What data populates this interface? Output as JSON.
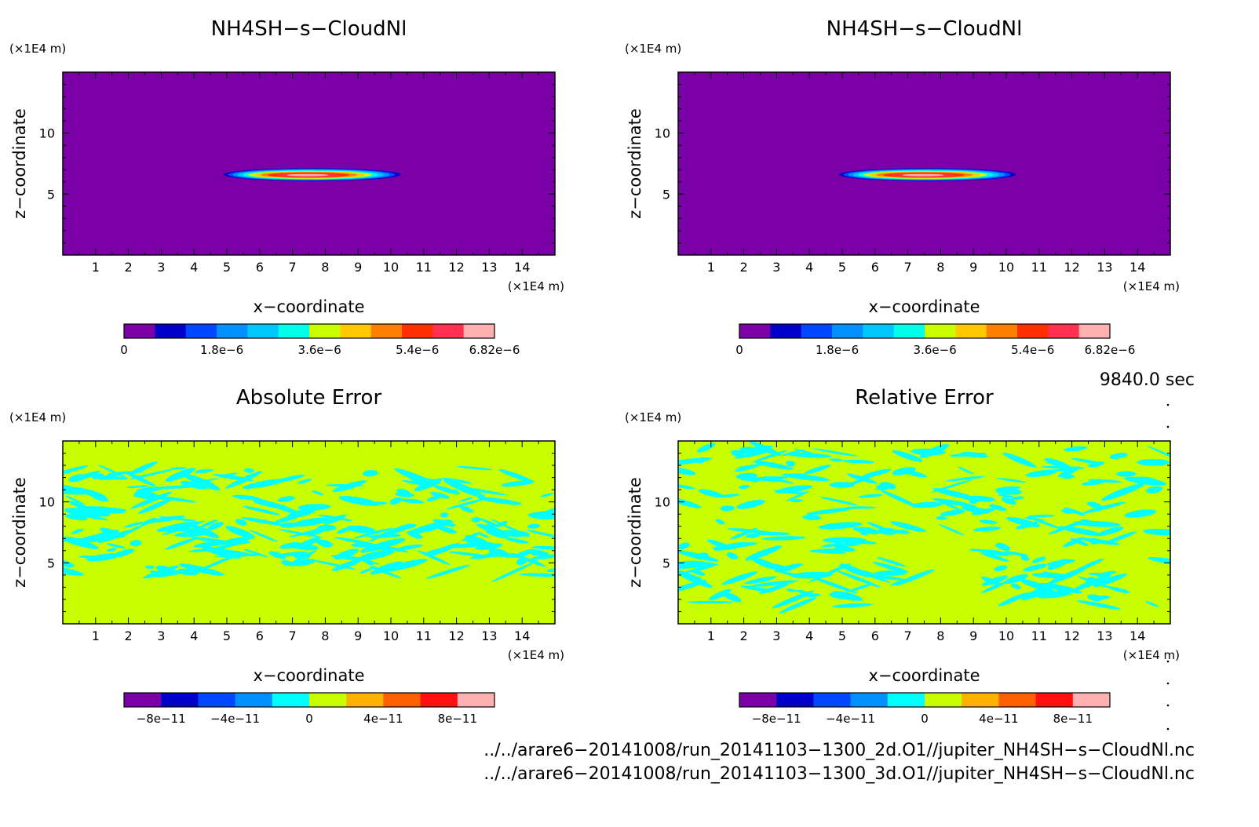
{
  "chart_data": [
    {
      "type": "heatmap",
      "title": "NH4SH−s−CloudNl",
      "xlabel": "x−coordinate",
      "ylabel": "z−coordinate",
      "xunit": "(×1E4 m)",
      "yunit": "(×1E4 m)",
      "xlim": [
        0,
        15
      ],
      "ylim": [
        0,
        15
      ],
      "x_ticks": [
        1,
        2,
        3,
        4,
        5,
        6,
        7,
        8,
        9,
        10,
        11,
        12,
        13,
        14
      ],
      "y_ticks": [
        5,
        10
      ],
      "field": "cloud",
      "field_range": [
        0,
        6.82e-06
      ],
      "cloud_center": [
        7.6,
        6.6
      ],
      "cloud_extent": [
        2.7,
        0.5
      ],
      "colorbar": {
        "tick_labels": [
          "0",
          "1.8e−6",
          "3.6e−6",
          "5.4e−6",
          "6.82e−6"
        ],
        "tick_values": [
          0,
          1.8e-06,
          3.6e-06,
          5.4e-06,
          6.82e-06
        ],
        "colors": [
          "#7b00a8",
          "#0000c8",
          "#0048ff",
          "#0090ff",
          "#00c8ff",
          "#00ffe8",
          "#c8ff00",
          "#ffc800",
          "#ff8000",
          "#ff3000",
          "#ff3050",
          "#ffb0b0"
        ]
      }
    },
    {
      "type": "heatmap",
      "title": "NH4SH−s−CloudNl",
      "xlabel": "x−coordinate",
      "ylabel": "z−coordinate",
      "xunit": "(×1E4 m)",
      "yunit": "(×1E4 m)",
      "xlim": [
        0,
        15
      ],
      "ylim": [
        0,
        15
      ],
      "x_ticks": [
        1,
        2,
        3,
        4,
        5,
        6,
        7,
        8,
        9,
        10,
        11,
        12,
        13,
        14
      ],
      "y_ticks": [
        5,
        10
      ],
      "field": "cloud",
      "field_range": [
        0,
        6.82e-06
      ],
      "cloud_center": [
        7.6,
        6.6
      ],
      "cloud_extent": [
        2.7,
        0.5
      ],
      "colorbar": {
        "tick_labels": [
          "0",
          "1.8e−6",
          "3.6e−6",
          "5.4e−6",
          "6.82e−6"
        ],
        "tick_values": [
          0,
          1.8e-06,
          3.6e-06,
          5.4e-06,
          6.82e-06
        ],
        "colors": [
          "#7b00a8",
          "#0000c8",
          "#0048ff",
          "#0090ff",
          "#00c8ff",
          "#00ffe8",
          "#c8ff00",
          "#ffc800",
          "#ff8000",
          "#ff3000",
          "#ff3050",
          "#ffb0b0"
        ]
      }
    },
    {
      "type": "heatmap",
      "title": "Absolute Error",
      "xlabel": "x−coordinate",
      "ylabel": "z−coordinate",
      "xunit": "(×1E4 m)",
      "yunit": "(×1E4 m)",
      "xlim": [
        0,
        15
      ],
      "ylim": [
        0,
        15
      ],
      "x_ticks": [
        1,
        2,
        3,
        4,
        5,
        6,
        7,
        8,
        9,
        10,
        11,
        12,
        13,
        14
      ],
      "y_ticks": [
        5,
        10
      ],
      "field": "noise",
      "field_range": [
        -1e-10,
        1e-10
      ],
      "background_color": "#c8ff00",
      "pattern_color": "#00ffff",
      "noise_band_z": [
        4.0,
        13.0
      ],
      "noise_seed": 7,
      "colorbar": {
        "tick_labels": [
          "−8e−11",
          "−4e−11",
          "0",
          "4e−11",
          "8e−11"
        ],
        "tick_values": [
          -8e-11,
          -4e-11,
          0,
          4e-11,
          8e-11
        ],
        "colors": [
          "#7b00a8",
          "#0000c8",
          "#0048ff",
          "#0090ff",
          "#00ffff",
          "#c8ff00",
          "#ffb000",
          "#ff6000",
          "#ff1010",
          "#ffb0b0"
        ]
      }
    },
    {
      "type": "heatmap",
      "title": "Relative Error",
      "xlabel": "x−coordinate",
      "ylabel": "z−coordinate",
      "xunit": "(×1E4 m)",
      "yunit": "(×1E4 m)",
      "xlim": [
        0,
        15
      ],
      "ylim": [
        0,
        15
      ],
      "x_ticks": [
        1,
        2,
        3,
        4,
        5,
        6,
        7,
        8,
        9,
        10,
        11,
        12,
        13,
        14
      ],
      "y_ticks": [
        5,
        10
      ],
      "field": "noise",
      "field_range": [
        -1e-10,
        1e-10
      ],
      "background_color": "#c8ff00",
      "pattern_color": "#00ffff",
      "noise_band_z": [
        1.5,
        14.5
      ],
      "noise_seed": 19,
      "colorbar": {
        "tick_labels": [
          "−8e−11",
          "−4e−11",
          "0",
          "4e−11",
          "8e−11"
        ],
        "tick_values": [
          -8e-11,
          -4e-11,
          0,
          4e-11,
          8e-11
        ],
        "colors": [
          "#7b00a8",
          "#0000c8",
          "#0048ff",
          "#0090ff",
          "#00ffff",
          "#c8ff00",
          "#ffb000",
          "#ff6000",
          "#ff1010",
          "#ffb0b0"
        ]
      }
    }
  ],
  "time_label": "9840.0 sec",
  "files": [
    "../../arare6−20141008/run_20141103−1300_2d.O1//jupiter_NH4SH−s−CloudNl.nc",
    "../../arare6−20141008/run_20141103−1300_3d.O1//jupiter_NH4SH−s−CloudNl.nc"
  ]
}
